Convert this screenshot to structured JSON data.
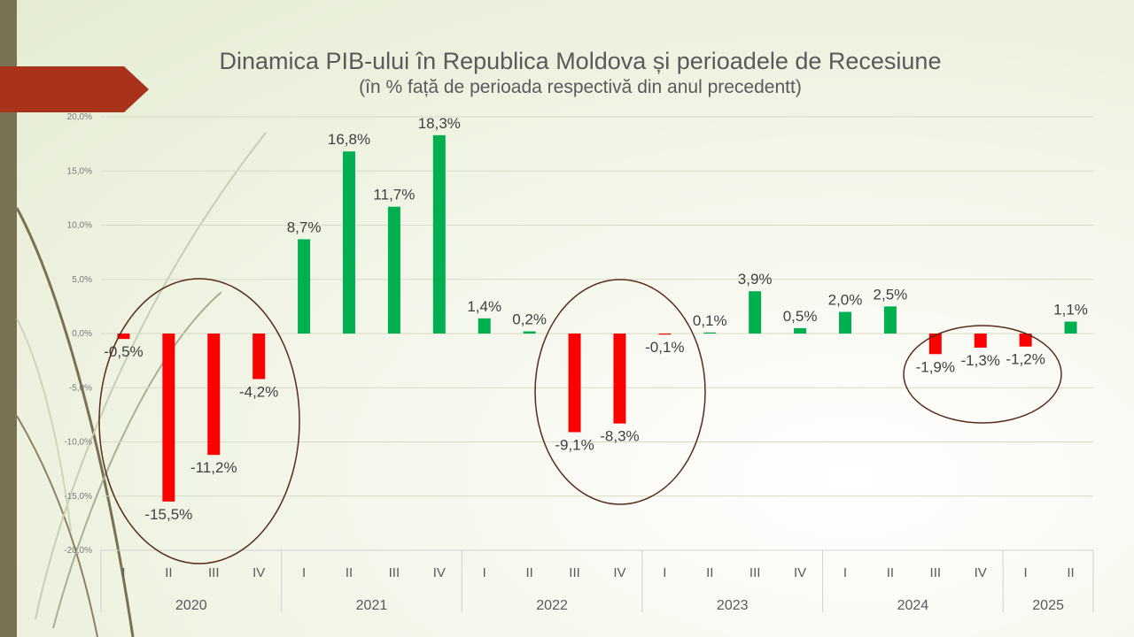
{
  "title": "Dinamica PIB-ului în Republica Moldova și perioadele de Recesiune",
  "subtitle": "(în % față de perioada respectivă din anul precedentt)",
  "colors": {
    "positive": "#00b050",
    "negative": "#ff0000",
    "ellipse": "#5c2a1a",
    "ribbon": "#a8321a",
    "band": "#7a7152"
  },
  "chart_data": {
    "type": "bar",
    "ylim": [
      -20,
      20
    ],
    "yticks": [
      "20,0%",
      "15,0%",
      "10,0%",
      "5,0%",
      "0,0%",
      "-5,0%",
      "-10,0%",
      "-15,0%",
      "-20,0%"
    ],
    "ytick_values": [
      20,
      15,
      10,
      5,
      0,
      -5,
      -10,
      -15,
      -20
    ],
    "categories": [
      "I",
      "II",
      "III",
      "IV",
      "I",
      "II",
      "III",
      "IV",
      "I",
      "II",
      "III",
      "IV",
      "I",
      "II",
      "III",
      "IV",
      "I",
      "II",
      "III",
      "IV",
      "I",
      "II"
    ],
    "groups": [
      {
        "label": "2020",
        "count": 4
      },
      {
        "label": "2021",
        "count": 4
      },
      {
        "label": "2022",
        "count": 4
      },
      {
        "label": "2023",
        "count": 4
      },
      {
        "label": "2024",
        "count": 4
      },
      {
        "label": "2025",
        "count": 2
      }
    ],
    "values": [
      -0.5,
      -15.5,
      -11.2,
      -4.2,
      8.7,
      16.8,
      11.7,
      18.3,
      1.4,
      0.2,
      -9.1,
      -8.3,
      -0.1,
      0.1,
      3.9,
      0.5,
      2.0,
      2.5,
      -1.9,
      -1.3,
      -1.2,
      1.1
    ],
    "labels": [
      "-0,5%",
      "-15,5%",
      "-11,2%",
      "-4,2%",
      "8,7%",
      "16,8%",
      "11,7%",
      "18,3%",
      "1,4%",
      "0,2%",
      "-9,1%",
      "-8,3%",
      "-0,1%",
      "0,1%",
      "3,9%",
      "0,5%",
      "2,0%",
      "2,5%",
      "-1,9%",
      "-1,3%",
      "-1,2%",
      "1,1%"
    ],
    "grid": true,
    "legend": "none"
  }
}
